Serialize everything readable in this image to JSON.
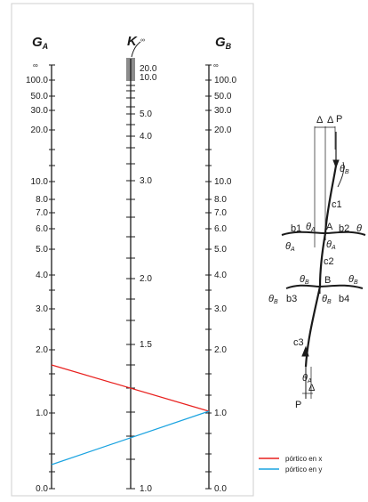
{
  "nomogram": {
    "header_ga": "G",
    "header_ga_sub": "A",
    "header_k": "K",
    "header_k_inf": "∞",
    "header_gb": "G",
    "header_gb_sub": "B",
    "ga_scale": [
      "∞",
      "100.0",
      "50.0",
      "30.0",
      "20.0",
      "10.0",
      "8.0",
      "7.0",
      "6.0",
      "5.0",
      "4.0",
      "3.0",
      "2.0",
      "1.0",
      "0.0"
    ],
    "gb_scale": [
      "∞",
      "100.0",
      "50.0",
      "30.0",
      "20.0",
      "10.0",
      "8.0",
      "7.0",
      "6.0",
      "5.0",
      "4.0",
      "3.0",
      "2.0",
      "1.0",
      "0.0"
    ],
    "k_scale": [
      "20.0",
      "10.0",
      "5.0",
      "4.0",
      "3.0",
      "2.0",
      "1.5",
      "1.0"
    ]
  },
  "frame": {
    "delta_left": "Δ",
    "delta_right": "Δ",
    "load_top": "P",
    "load_bottom": "P",
    "delta_bottom": "Δ",
    "theta_b_top": "θ",
    "theta_b_top_sub": "B",
    "c1": "c1",
    "b1": "b1",
    "node_a_left": "θ",
    "node_a_left_sub": "A",
    "node_a": "A",
    "b2": "b2",
    "theta_a_far": "θ",
    "theta_a_below_left": "θ",
    "theta_a_below_left_sub": "A",
    "theta_a_below": "θ",
    "theta_a_below_sub": "A",
    "c2": "c2",
    "theta_b_left": "θ",
    "theta_b_left_sub": "B",
    "node_b": "B",
    "theta_b_right": "θ",
    "theta_b_right_sub": "B",
    "theta_b_far_left": "θ",
    "theta_b_far_left_sub": "B",
    "b3": "b3",
    "theta_b_below": "θ",
    "theta_b_below_sub": "B",
    "b4": "b4",
    "c3": "c3",
    "theta_a_bottom": "θ",
    "theta_a_bottom_sub": "A"
  },
  "legend": {
    "items": [
      {
        "label": "pórtico en x",
        "color": "#e8201e"
      },
      {
        "label": "pórtico en y",
        "color": "#1aa3e0"
      }
    ]
  }
}
